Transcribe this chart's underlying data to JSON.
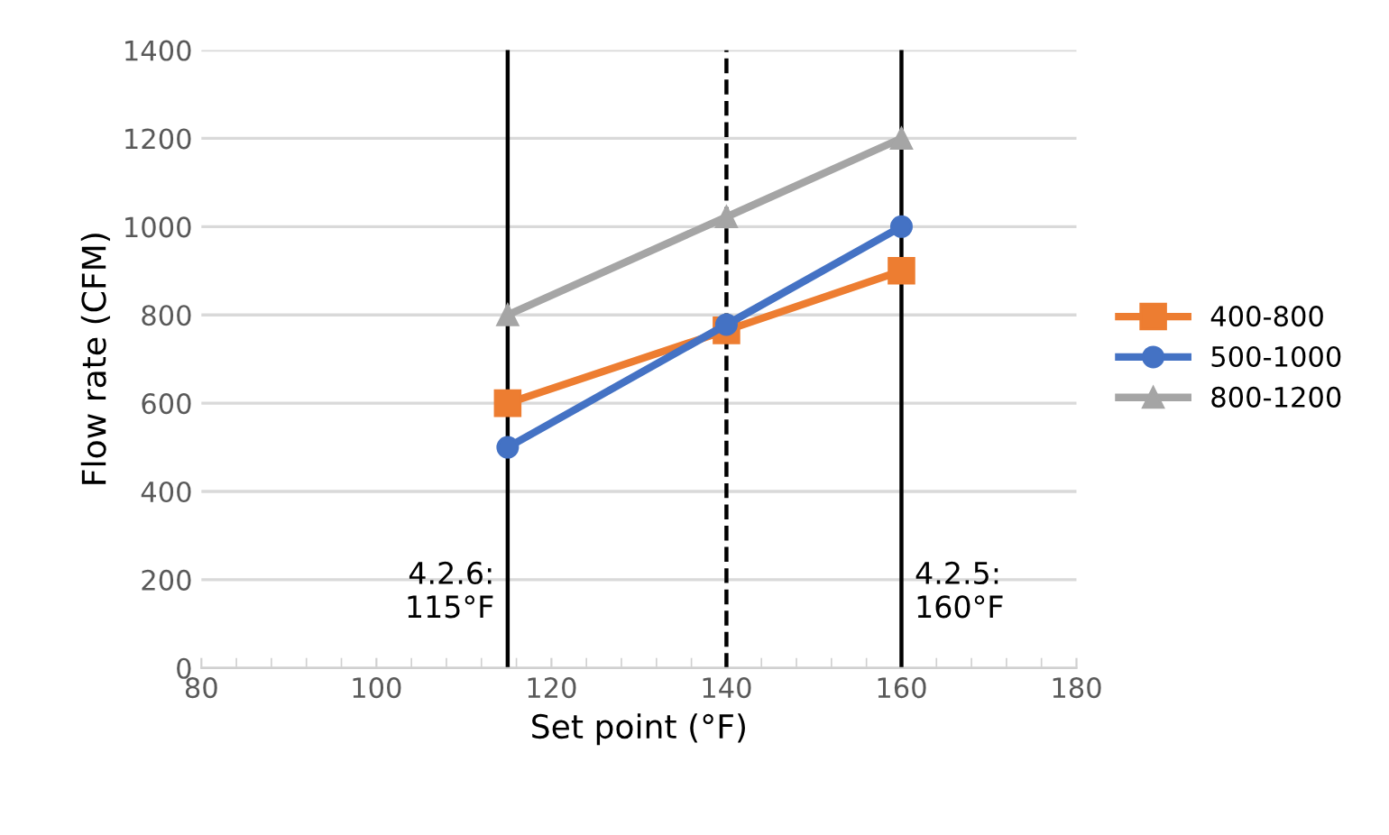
{
  "chart_data": {
    "type": "line",
    "xlabel": "Set point (°F)",
    "ylabel": "Flow rate (CFM)",
    "xlim": [
      80,
      180
    ],
    "xticks": [
      80,
      100,
      120,
      140,
      160,
      180
    ],
    "ylim": [
      0,
      1400
    ],
    "yticks": [
      0,
      200,
      400,
      600,
      800,
      1000,
      1200,
      1400
    ],
    "grid": "y",
    "legend": "right",
    "line_style": "solid",
    "series": [
      {
        "name": "400-800",
        "color": "#ed7d31",
        "marker": "square",
        "x": [
          115,
          140,
          160
        ],
        "values": [
          600,
          765,
          900
        ]
      },
      {
        "name": "500-1000",
        "color": "#4472c4",
        "marker": "circle",
        "x": [
          115,
          140,
          160
        ],
        "values": [
          500,
          778,
          1000
        ]
      },
      {
        "name": "800-1200",
        "color": "#a5a5a5",
        "marker": "triangle",
        "x": [
          115,
          140,
          160
        ],
        "values": [
          800,
          1022,
          1200
        ]
      }
    ],
    "ref_lines": [
      {
        "axis": "x",
        "value": 115,
        "label": "4.2.6:\n115°F",
        "color": "#000000",
        "line_style": "solid"
      },
      {
        "axis": "x",
        "value": 140,
        "color": "#000000",
        "line_style": "dashed"
      },
      {
        "axis": "x",
        "value": 160,
        "label": "4.2.5:\n160°F",
        "color": "#000000",
        "line_style": "solid"
      }
    ]
  }
}
